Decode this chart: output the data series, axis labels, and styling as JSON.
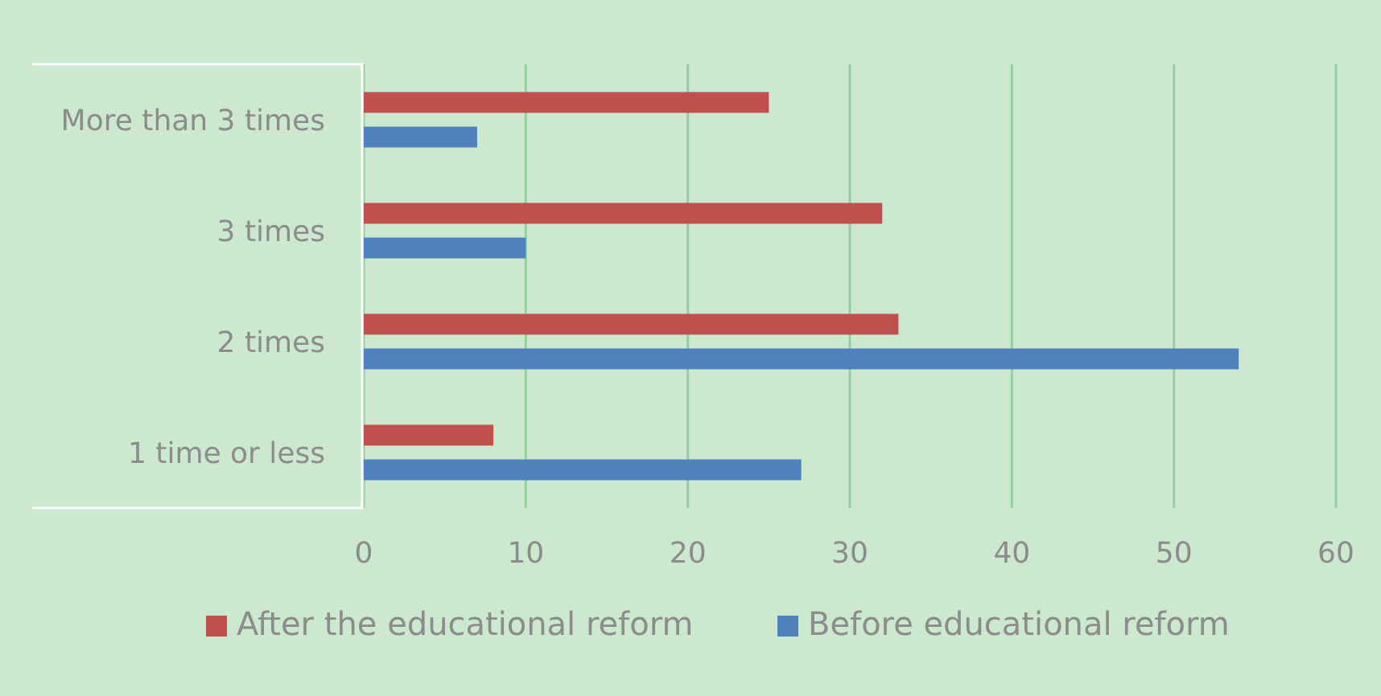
{
  "chart_data": {
    "type": "bar",
    "orientation": "horizontal",
    "categories": [
      "More than 3 times",
      "3 times",
      "2 times",
      "1 time or less"
    ],
    "series": [
      {
        "name": "After the educational reform",
        "color": "#c0504d",
        "values": [
          25,
          32,
          33,
          8
        ]
      },
      {
        "name": "Before educational reform",
        "color": "#4f81bd",
        "values": [
          7,
          10,
          54,
          27
        ]
      }
    ],
    "xlim": [
      0,
      60
    ],
    "xticks": [
      0,
      10,
      20,
      30,
      40,
      50,
      60
    ],
    "grid": "x",
    "legend": "bottom"
  }
}
